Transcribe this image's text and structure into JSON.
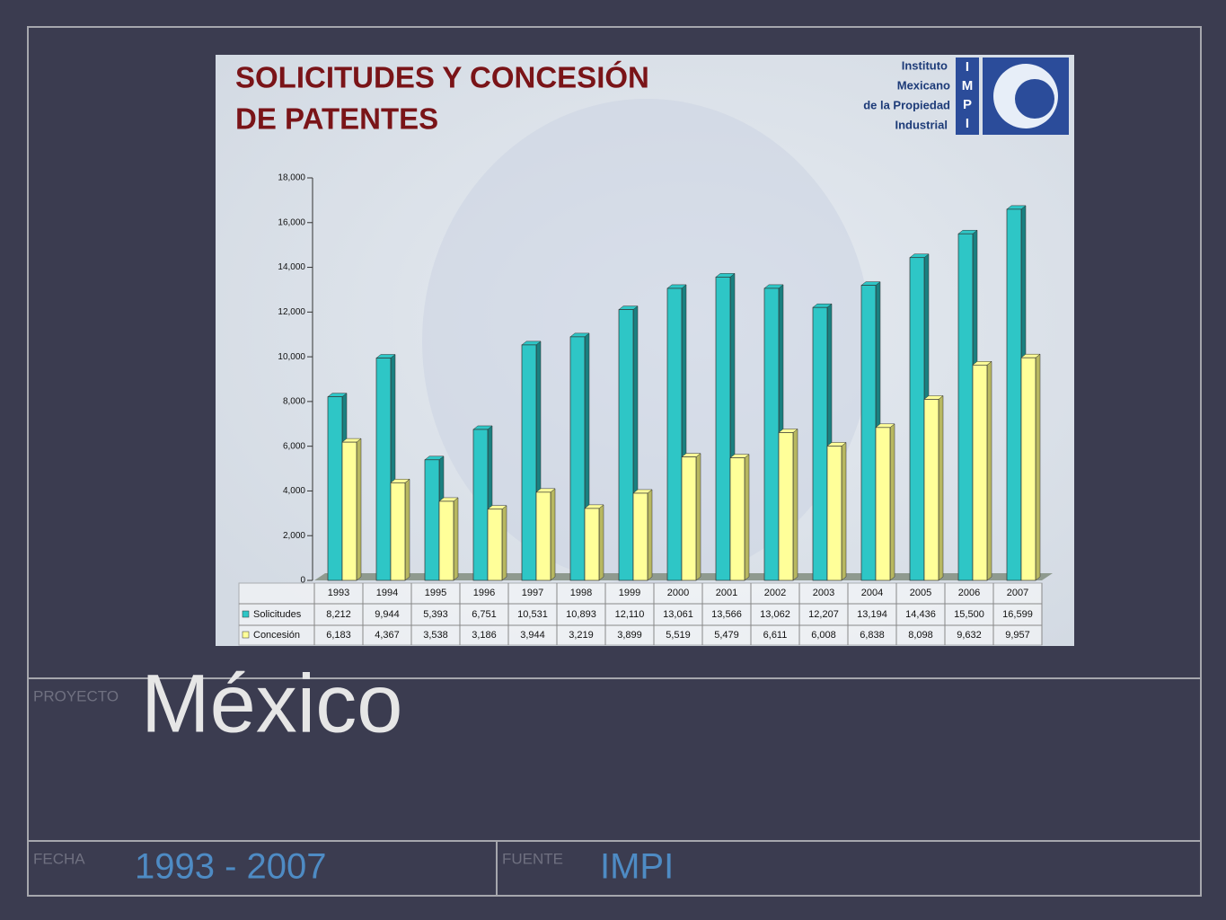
{
  "chart_data": {
    "type": "bar",
    "title": [
      "SOLICITUDES Y CONCESIÓN",
      "DE PATENTES"
    ],
    "categories": [
      "1993",
      "1994",
      "1995",
      "1996",
      "1997",
      "1998",
      "1999",
      "2000",
      "2001",
      "2002",
      "2003",
      "2004",
      "2005",
      "2006",
      "2007"
    ],
    "series": [
      {
        "name": "Solicitudes",
        "color": "#2ec6c6",
        "values": [
          8212,
          9944,
          5393,
          6751,
          10531,
          10893,
          12110,
          13061,
          13566,
          13062,
          12207,
          13194,
          14436,
          15500,
          16599
        ],
        "value_labels": [
          "8,212",
          "9,944",
          "5,393",
          "6,751",
          "10,531",
          "10,893",
          "12,110",
          "13,061",
          "13,566",
          "13,062",
          "12,207",
          "13,194",
          "14,436",
          "15,500",
          "16,599"
        ]
      },
      {
        "name": "Concesión",
        "color": "#ffff99",
        "values": [
          6183,
          4367,
          3538,
          3186,
          3944,
          3219,
          3899,
          5519,
          5479,
          6611,
          6008,
          6838,
          8098,
          9632,
          9957
        ],
        "value_labels": [
          "6,183",
          "4,367",
          "3,538",
          "3,186",
          "3,944",
          "3,219",
          "3,899",
          "5,519",
          "5,479",
          "6,611",
          "6,008",
          "6,838",
          "8,098",
          "9,632",
          "9,957"
        ]
      }
    ],
    "ylim": [
      0,
      18000
    ],
    "yticks": [
      0,
      {
        "value": 2000,
        "label": "2,000"
      },
      {
        "value": 4000,
        "label": "4,000"
      },
      {
        "value": 6000,
        "label": "6,000"
      },
      {
        "value": 8000,
        "label": "8,000"
      },
      {
        "value": 10000,
        "label": "10,000"
      },
      {
        "value": 12000,
        "label": "12,000"
      },
      {
        "value": 14000,
        "label": "14,000"
      },
      {
        "value": 16000,
        "label": "16,000"
      },
      {
        "value": 18000,
        "label": "18,000"
      }
    ]
  },
  "logo": {
    "lines": [
      "Instituto",
      "Mexicano",
      "de la Propiedad",
      "Industrial"
    ],
    "letters": [
      "I",
      "M",
      "P",
      "I"
    ]
  },
  "slide": {
    "project_label": "PROYECTO",
    "project": "México",
    "date_label": "FECHA",
    "date": "1993 - 2007",
    "source_label": "FUENTE",
    "source": "IMPI"
  }
}
